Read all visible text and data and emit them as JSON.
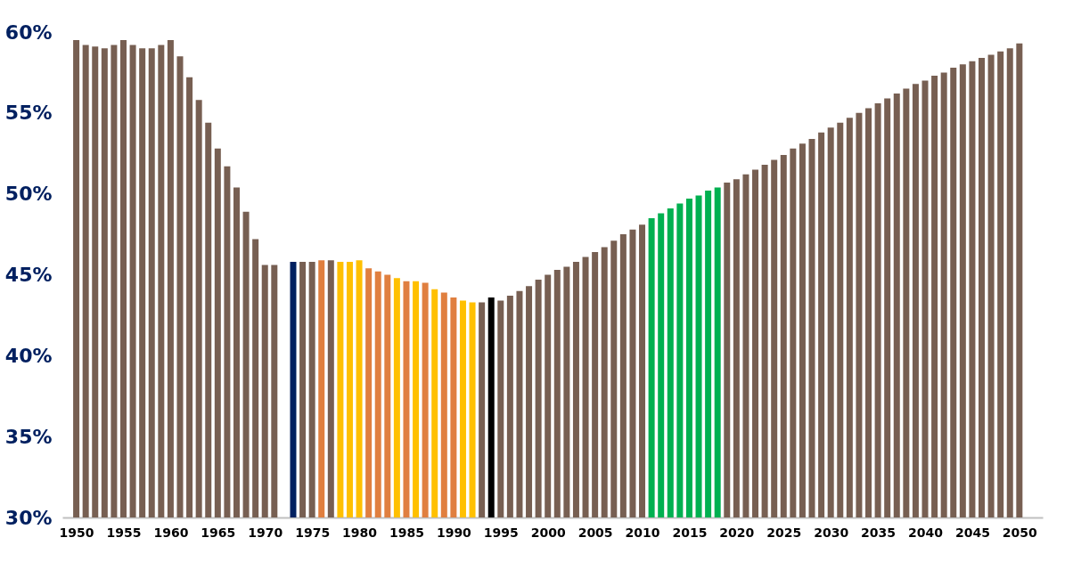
{
  "chart_data": {
    "type": "bar",
    "x": [
      1950,
      1951,
      1952,
      1953,
      1954,
      1955,
      1956,
      1957,
      1958,
      1959,
      1960,
      1961,
      1962,
      1963,
      1964,
      1965,
      1966,
      1967,
      1968,
      1969,
      1970,
      1971,
      1972,
      1973,
      1974,
      1975,
      1976,
      1977,
      1978,
      1979,
      1980,
      1981,
      1982,
      1983,
      1984,
      1985,
      1986,
      1987,
      1988,
      1989,
      1990,
      1991,
      1992,
      1993,
      1994,
      1995,
      1996,
      1997,
      1998,
      1999,
      2000,
      2001,
      2002,
      2003,
      2004,
      2005,
      2006,
      2007,
      2008,
      2009,
      2010,
      2011,
      2012,
      2013,
      2014,
      2015,
      2016,
      2017,
      2018,
      2019,
      2020,
      2021,
      2022,
      2023,
      2024,
      2025,
      2026,
      2027,
      2028,
      2029,
      2030,
      2031,
      2032,
      2033,
      2034,
      2035,
      2036,
      2037,
      2038,
      2039,
      2040,
      2041,
      2042,
      2043,
      2044,
      2045,
      2046,
      2047,
      2048,
      2049,
      2050
    ],
    "values": [
      59.5,
      59.2,
      59.1,
      59.0,
      59.2,
      59.5,
      59.2,
      59.0,
      59.0,
      59.2,
      59.5,
      58.5,
      57.2,
      55.8,
      54.4,
      52.8,
      51.7,
      50.4,
      48.9,
      47.2,
      45.6,
      45.6,
      null,
      45.8,
      45.8,
      45.8,
      45.9,
      45.9,
      45.8,
      45.8,
      45.9,
      45.4,
      45.2,
      45.0,
      44.8,
      44.6,
      44.6,
      44.5,
      44.1,
      43.9,
      43.6,
      43.4,
      43.3,
      43.3,
      43.6,
      43.4,
      43.7,
      44.0,
      44.3,
      44.7,
      45.0,
      45.3,
      45.5,
      45.8,
      46.1,
      46.4,
      46.7,
      47.1,
      47.5,
      47.8,
      48.1,
      48.5,
      48.8,
      49.1,
      49.4,
      49.7,
      49.9,
      50.2,
      50.4,
      50.7,
      50.9,
      51.2,
      51.5,
      51.8,
      52.1,
      52.4,
      52.8,
      53.1,
      53.4,
      53.8,
      54.1,
      54.4,
      54.7,
      55.0,
      55.3,
      55.6,
      55.9,
      56.2,
      56.5,
      56.8,
      57.0,
      57.3,
      57.5,
      57.8,
      58.0,
      58.2,
      58.4,
      58.6,
      58.8,
      59.0,
      59.3
    ],
    "colors": [
      "#775f52",
      "#775f52",
      "#775f52",
      "#775f52",
      "#775f52",
      "#775f52",
      "#775f52",
      "#775f52",
      "#775f52",
      "#775f52",
      "#775f52",
      "#775f52",
      "#775f52",
      "#775f52",
      "#775f52",
      "#775f52",
      "#775f52",
      "#775f52",
      "#775f52",
      "#775f52",
      "#775f52",
      "#775f52",
      "#775f52",
      "#002060",
      "#775f52",
      "#775f52",
      "#e07f3f",
      "#775f52",
      "#ffc000",
      "#ffc000",
      "#ffc000",
      "#e07f3f",
      "#e07f3f",
      "#e07f3f",
      "#ffc000",
      "#e07f3f",
      "#ffc000",
      "#e07f3f",
      "#ffc000",
      "#e07f3f",
      "#e07f3f",
      "#ffc000",
      "#ffc000",
      "#775f52",
      "#000000",
      "#775f52",
      "#775f52",
      "#775f52",
      "#775f52",
      "#775f52",
      "#775f52",
      "#775f52",
      "#775f52",
      "#775f52",
      "#775f52",
      "#775f52",
      "#775f52",
      "#775f52",
      "#775f52",
      "#775f52",
      "#775f52",
      "#00b050",
      "#00b050",
      "#00b050",
      "#00b050",
      "#00b050",
      "#00b050",
      "#00b050",
      "#00b050",
      "#775f52",
      "#775f52",
      "#775f52",
      "#775f52",
      "#775f52",
      "#775f52",
      "#775f52",
      "#775f52",
      "#775f52",
      "#775f52",
      "#775f52",
      "#775f52",
      "#775f52",
      "#775f52",
      "#775f52",
      "#775f52",
      "#775f52",
      "#775f52",
      "#775f52",
      "#775f52",
      "#775f52",
      "#775f52",
      "#775f52",
      "#775f52",
      "#775f52",
      "#775f52",
      "#775f52",
      "#775f52",
      "#775f52",
      "#775f52",
      "#775f52",
      "#775f52"
    ],
    "xlim": [
      1949,
      2052
    ],
    "xticks": [
      1950,
      1955,
      1960,
      1965,
      1970,
      1975,
      1980,
      1985,
      1990,
      1995,
      2000,
      2005,
      2010,
      2015,
      2020,
      2025,
      2030,
      2035,
      2040,
      2045,
      2050
    ],
    "ylim": [
      30,
      60
    ],
    "yticks": [
      {
        "value": 30,
        "label": "30%"
      },
      {
        "value": 35,
        "label": "35%"
      },
      {
        "value": 40,
        "label": "40%"
      },
      {
        "value": 45,
        "label": "45%"
      },
      {
        "value": 50,
        "label": "50%"
      },
      {
        "value": 55,
        "label": "55%"
      },
      {
        "value": 60,
        "label": "60%"
      }
    ],
    "grid": false
  }
}
